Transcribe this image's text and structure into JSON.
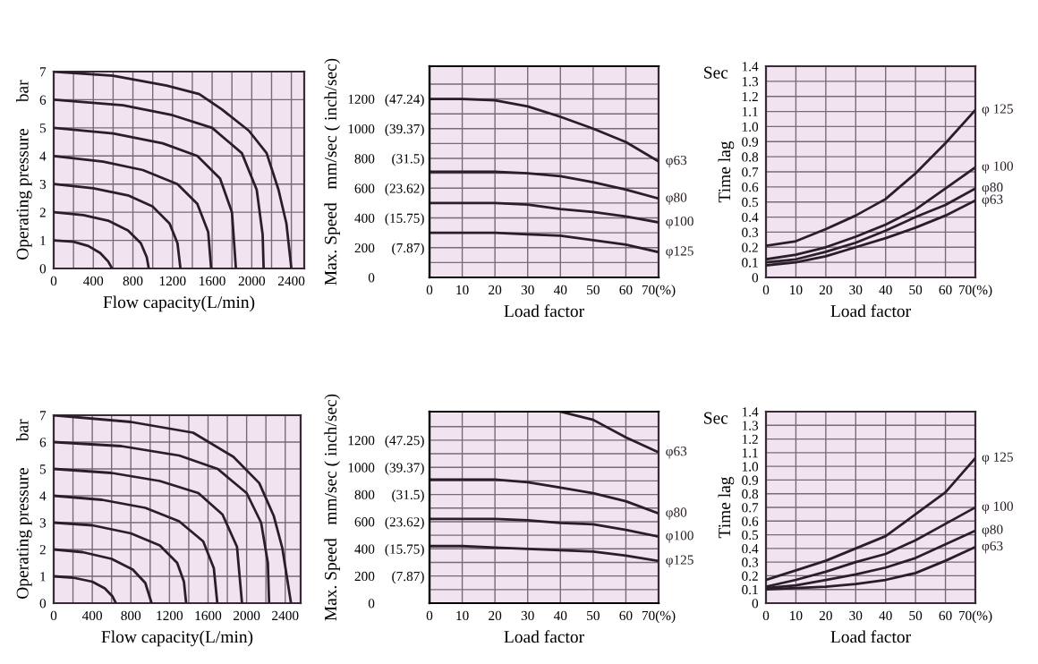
{
  "chart_data": [
    {
      "type": "line",
      "xlabel": "Flow capacity(L/min)",
      "ylabel": "Operating pressure      bar",
      "xlim": [
        0,
        2530
      ],
      "ylim": [
        0,
        7
      ],
      "xticks": [
        0,
        {
          "value": 200,
          "label": null
        },
        400,
        {
          "value": 600,
          "label": null
        },
        800,
        {
          "value": 1000,
          "label": null
        },
        1200,
        {
          "value": 1400,
          "label": null
        },
        1600,
        {
          "value": 1800,
          "label": null
        },
        2000,
        {
          "value": 2200,
          "label": null
        },
        2400
      ],
      "yticks": [
        0,
        1,
        2,
        3,
        4,
        5,
        6,
        7
      ],
      "grid": true,
      "series": [
        {
          "color": "#2a1f28",
          "x": [
            0,
            200,
            350,
            470,
            550,
            590
          ],
          "values": [
            1,
            0.95,
            0.8,
            0.55,
            0.25,
            0
          ]
        },
        {
          "color": "#2a1f28",
          "x": [
            0,
            300,
            550,
            750,
            880,
            940,
            960
          ],
          "values": [
            2,
            1.9,
            1.7,
            1.35,
            0.9,
            0.4,
            0
          ]
        },
        {
          "color": "#2a1f28",
          "x": [
            0,
            400,
            750,
            1000,
            1170,
            1250,
            1280
          ],
          "values": [
            3,
            2.85,
            2.6,
            2.2,
            1.6,
            0.9,
            0
          ]
        },
        {
          "color": "#2a1f28",
          "x": [
            0,
            500,
            900,
            1250,
            1450,
            1560,
            1590
          ],
          "values": [
            4,
            3.8,
            3.5,
            3.0,
            2.3,
            1.3,
            0
          ]
        },
        {
          "color": "#2a1f28",
          "x": [
            0,
            600,
            1100,
            1450,
            1680,
            1800,
            1840
          ],
          "values": [
            5,
            4.8,
            4.45,
            4.0,
            3.2,
            2.0,
            0
          ]
        },
        {
          "color": "#2a1f28",
          "x": [
            0,
            700,
            1200,
            1600,
            1900,
            2050,
            2110,
            2120
          ],
          "values": [
            6,
            5.8,
            5.45,
            5.0,
            4.1,
            2.8,
            1.2,
            0
          ]
        },
        {
          "color": "#2a1f28",
          "x": [
            0,
            600,
            1140,
            1470,
            1700,
            1970,
            2150,
            2270,
            2350,
            2400
          ],
          "values": [
            7,
            6.85,
            6.5,
            6.2,
            5.65,
            4.9,
            4.1,
            2.8,
            1.6,
            0
          ]
        }
      ]
    },
    {
      "type": "line",
      "xlabel": "Load factor",
      "ylabel": "Max. Speed   mm/sec ( inch/sec)",
      "x": [
        0,
        10,
        20,
        30,
        40,
        50,
        60,
        70
      ],
      "xlim": [
        0,
        70
      ],
      "ylim": [
        0,
        1420
      ],
      "xticks": [
        0,
        10,
        20,
        30,
        40,
        50,
        60,
        {
          "value": 70,
          "label": "70(%)"
        }
      ],
      "yticks": [
        0,
        {
          "value": 100,
          "label": null
        },
        200,
        {
          "value": 300,
          "label": null
        },
        400,
        {
          "value": 500,
          "label": null
        },
        600,
        {
          "value": 700,
          "label": null
        },
        800,
        {
          "value": 900,
          "label": null
        },
        1000,
        {
          "value": 1100,
          "label": null
        },
        1200,
        {
          "value": 1300,
          "label": null
        }
      ],
      "grid": true,
      "y2lim": [
        0,
        55.9
      ],
      "y2ticks": [
        {
          "value": 7.87,
          "label": "(7.87)"
        },
        {
          "value": 15.75,
          "label": "(15.75)"
        },
        {
          "value": 23.62,
          "label": "(23.62)"
        },
        {
          "value": 31.5,
          "label": "(31.5)"
        },
        {
          "value": 39.37,
          "label": "(39.37)"
        },
        {
          "value": 47.24,
          "label": "(47.24)"
        }
      ],
      "series": [
        {
          "name": "φ63",
          "color": "#2a1f28",
          "values": [
            1200,
            1200,
            1190,
            1150,
            1080,
            1000,
            910,
            780
          ]
        },
        {
          "name": "φ80",
          "color": "#2a1f28",
          "values": [
            710,
            710,
            710,
            700,
            680,
            640,
            590,
            530
          ]
        },
        {
          "name": "φ100",
          "color": "#2a1f28",
          "values": [
            500,
            500,
            500,
            490,
            460,
            440,
            410,
            370
          ]
        },
        {
          "name": "φ125",
          "color": "#2a1f28",
          "values": [
            300,
            300,
            300,
            290,
            280,
            250,
            220,
            170
          ]
        }
      ]
    },
    {
      "type": "line",
      "xlabel": "Load factor",
      "ylabel": "Time lag",
      "annotations": [
        "Sec"
      ],
      "x": [
        0,
        10,
        20,
        30,
        40,
        50,
        60,
        70
      ],
      "xlim": [
        0,
        70
      ],
      "ylim": [
        0,
        1.4
      ],
      "xticks": [
        0,
        10,
        20,
        30,
        40,
        50,
        60,
        {
          "value": 70,
          "label": "70(%)"
        }
      ],
      "yticks": [
        0,
        0.1,
        0.2,
        0.3,
        0.4,
        0.5,
        0.6,
        0.7,
        0.8,
        0.9,
        {
          "value": 1.0,
          "label": "1.0"
        },
        1.1,
        1.2,
        1.3,
        1.4
      ],
      "grid": true,
      "series": [
        {
          "name": "φ 125",
          "color": "#2a1f28",
          "values": [
            0.21,
            0.24,
            0.32,
            0.41,
            0.52,
            0.69,
            0.89,
            1.11
          ]
        },
        {
          "name": "φ 100",
          "color": "#2a1f28",
          "values": [
            0.12,
            0.15,
            0.2,
            0.27,
            0.35,
            0.45,
            0.59,
            0.73
          ]
        },
        {
          "name": "φ80",
          "color": "#2a1f28",
          "values": [
            0.1,
            0.12,
            0.17,
            0.23,
            0.31,
            0.4,
            0.48,
            0.59
          ]
        },
        {
          "name": "φ63",
          "color": "#2a1f28",
          "values": [
            0.08,
            0.1,
            0.14,
            0.2,
            0.26,
            0.33,
            0.41,
            0.51
          ]
        }
      ]
    },
    {
      "type": "line",
      "xlabel": "Flow capacity(L/min)",
      "ylabel": "Operating pressure      bar",
      "xlim": [
        0,
        2560
      ],
      "ylim": [
        0,
        7
      ],
      "xticks": [
        0,
        {
          "value": 200,
          "label": null
        },
        400,
        {
          "value": 600,
          "label": null
        },
        800,
        {
          "value": 1000,
          "label": null
        },
        1200,
        {
          "value": 1400,
          "label": null
        },
        1600,
        {
          "value": 1800,
          "label": null
        },
        2000,
        {
          "value": 2200,
          "label": null
        },
        2400
      ],
      "yticks": [
        0,
        1,
        2,
        3,
        4,
        5,
        6,
        7
      ],
      "grid": true,
      "series": [
        {
          "color": "#2a1f28",
          "x": [
            0,
            200,
            400,
            530,
            610,
            645
          ],
          "values": [
            1,
            0.95,
            0.8,
            0.55,
            0.25,
            0
          ]
        },
        {
          "color": "#2a1f28",
          "x": [
            0,
            300,
            600,
            820,
            950,
            1015
          ],
          "values": [
            2,
            1.9,
            1.65,
            1.25,
            0.75,
            0
          ]
        },
        {
          "color": "#2a1f28",
          "x": [
            0,
            400,
            800,
            1100,
            1280,
            1350,
            1373
          ],
          "values": [
            3,
            2.9,
            2.6,
            2.15,
            1.5,
            0.8,
            0
          ]
        },
        {
          "color": "#2a1f28",
          "x": [
            0,
            500,
            950,
            1300,
            1550,
            1660,
            1696
          ],
          "values": [
            4,
            3.85,
            3.55,
            3.05,
            2.3,
            1.3,
            0
          ]
        },
        {
          "color": "#2a1f28",
          "x": [
            0,
            600,
            1100,
            1500,
            1750,
            1900,
            1952
          ],
          "values": [
            5,
            4.85,
            4.55,
            4.1,
            3.3,
            2.1,
            0
          ]
        },
        {
          "color": "#2a1f28",
          "x": [
            0,
            700,
            1300,
            1700,
            2000,
            2150,
            2220,
            2233
          ],
          "values": [
            6,
            5.85,
            5.5,
            5.0,
            4.1,
            3.0,
            1.5,
            0
          ]
        },
        {
          "color": "#2a1f28",
          "x": [
            0,
            800,
            1445,
            1863,
            2131,
            2280,
            2370,
            2460
          ],
          "values": [
            7,
            6.75,
            6.35,
            5.45,
            4.47,
            3.26,
            2.05,
            0
          ]
        }
      ]
    },
    {
      "type": "line",
      "xlabel": "Load factor",
      "ylabel": "Max. Speed   mm/sec ( inch/sec)",
      "x": [
        0,
        10,
        20,
        30,
        40,
        50,
        60,
        70
      ],
      "xlim": [
        0,
        70
      ],
      "ylim": [
        0,
        1410
      ],
      "xticks": [
        0,
        10,
        20,
        30,
        40,
        50,
        60,
        {
          "value": 70,
          "label": "70(%)"
        }
      ],
      "yticks": [
        0,
        {
          "value": 100,
          "label": null
        },
        200,
        {
          "value": 300,
          "label": null
        },
        400,
        {
          "value": 500,
          "label": null
        },
        600,
        {
          "value": 700,
          "label": null
        },
        800,
        {
          "value": 900,
          "label": null
        },
        1000,
        {
          "value": 1100,
          "label": null
        },
        1200,
        {
          "value": 1300,
          "label": null
        }
      ],
      "grid": true,
      "y2lim": [
        0,
        55.51
      ],
      "y2ticks": [
        {
          "value": 7.87,
          "label": "(7.87)"
        },
        {
          "value": 15.75,
          "label": "(15.75)"
        },
        {
          "value": 23.62,
          "label": "(23.62)"
        },
        {
          "value": 31.5,
          "label": "(31.5)"
        },
        {
          "value": 39.37,
          "label": "(39.37)"
        },
        {
          "value": 47.25,
          "label": "(47.25)"
        }
      ],
      "series": [
        {
          "name": "φ63",
          "color": "#2a1f28",
          "values": [
            null,
            null,
            null,
            null,
            1410,
            1350,
            1220,
            1110
          ]
        },
        {
          "name": "φ80",
          "color": "#2a1f28",
          "values": [
            910,
            910,
            910,
            890,
            850,
            810,
            750,
            660
          ]
        },
        {
          "name": "φ100",
          "color": "#2a1f28",
          "values": [
            620,
            620,
            620,
            610,
            590,
            580,
            540,
            490
          ]
        },
        {
          "name": "φ125",
          "color": "#2a1f28",
          "values": [
            420,
            420,
            410,
            400,
            390,
            380,
            350,
            310
          ]
        }
      ]
    },
    {
      "type": "line",
      "xlabel": "Load factor",
      "ylabel": "Time lag",
      "annotations": [
        "Sec"
      ],
      "x": [
        0,
        10,
        20,
        30,
        40,
        50,
        60,
        70
      ],
      "xlim": [
        0,
        70
      ],
      "ylim": [
        0,
        1.4
      ],
      "xticks": [
        0,
        10,
        20,
        30,
        40,
        50,
        60,
        {
          "value": 70,
          "label": "70(%)"
        }
      ],
      "yticks": [
        0,
        0.1,
        0.2,
        0.3,
        0.4,
        0.5,
        0.6,
        0.7,
        0.8,
        0.9,
        {
          "value": 1.0,
          "label": "1.0"
        },
        1.1,
        1.2,
        1.3,
        1.4
      ],
      "grid": true,
      "series": [
        {
          "name": "φ 125",
          "color": "#2a1f28",
          "values": [
            0.17,
            0.24,
            0.31,
            0.4,
            0.49,
            0.65,
            0.81,
            1.06
          ]
        },
        {
          "name": "φ 100",
          "color": "#2a1f28",
          "values": [
            0.12,
            0.17,
            0.23,
            0.3,
            0.36,
            0.46,
            0.58,
            0.7
          ]
        },
        {
          "name": "φ80",
          "color": "#2a1f28",
          "values": [
            0.11,
            0.13,
            0.17,
            0.21,
            0.26,
            0.33,
            0.43,
            0.53
          ]
        },
        {
          "name": "φ63",
          "color": "#2a1f28",
          "values": [
            0.1,
            0.11,
            0.12,
            0.14,
            0.17,
            0.22,
            0.31,
            0.41
          ]
        }
      ]
    }
  ]
}
